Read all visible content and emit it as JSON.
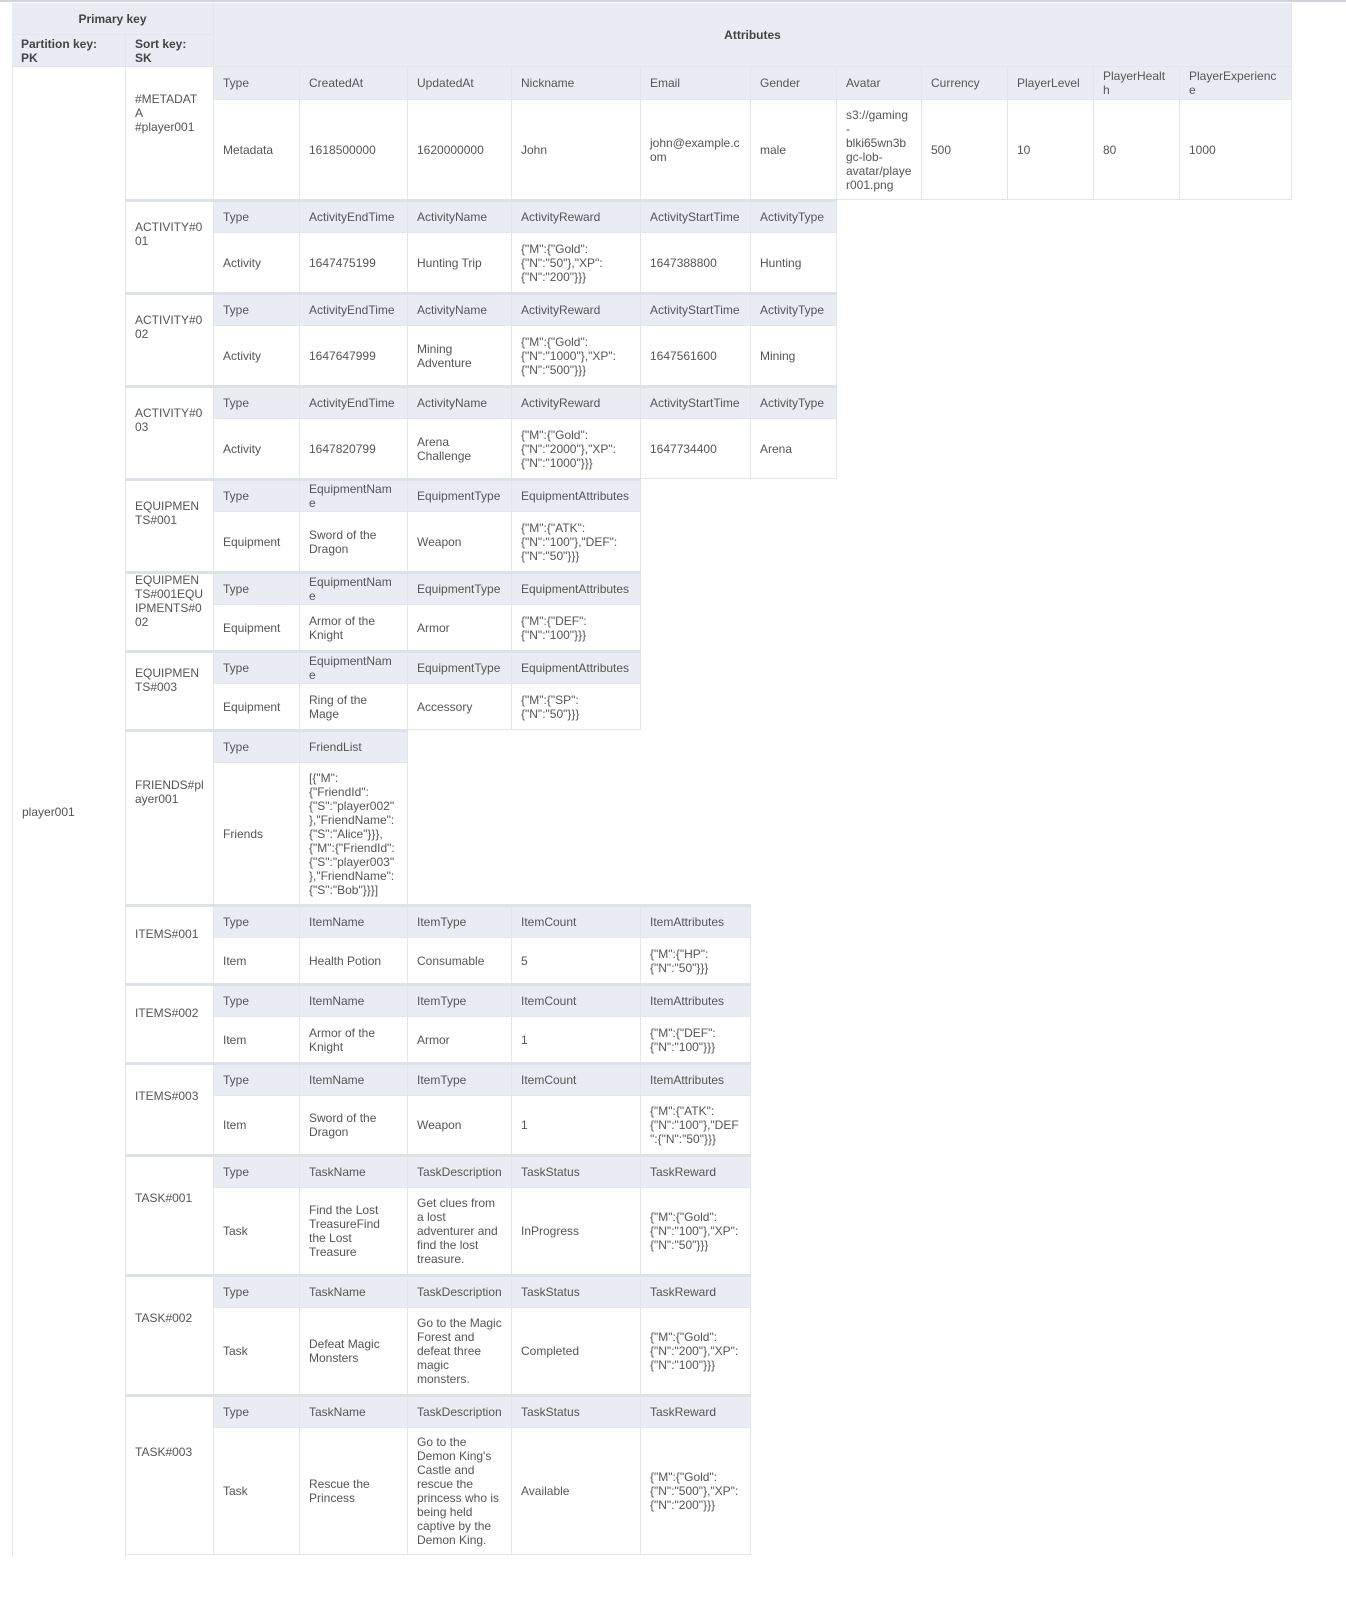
{
  "header": {
    "primary_key": "Primary key",
    "partition_key": "Partition key: PK",
    "sort_key": "Sort key: SK",
    "attributes": "Attributes"
  },
  "partition_value": "player001",
  "items": [
    {
      "sk": "#METADATA #player001",
      "columns": [
        "Type",
        "CreatedAt",
        "UpdatedAt",
        "Nickname",
        "Email",
        "Gender",
        "Avatar",
        "Currency",
        "PlayerLevel",
        "PlayerHealth",
        "PlayerExperience"
      ],
      "values": [
        "Metadata",
        "1618500000",
        "1620000000",
        "John",
        "john@example.com",
        "male",
        "s3://gaming-blki65wn3bgc-lob-avatar/player001.png",
        "500",
        "10",
        "80",
        "1000"
      ]
    },
    {
      "sk": "ACTIVITY#001",
      "columns": [
        "Type",
        "ActivityEndTime",
        "ActivityName",
        "ActivityReward",
        "ActivityStartTime",
        "ActivityType"
      ],
      "values": [
        "Activity",
        "1647475199",
        "Hunting Trip",
        "{\"M\":{\"Gold\":{\"N\":\"50\"},\"XP\":{\"N\":\"200\"}}}",
        "1647388800",
        "Hunting"
      ]
    },
    {
      "sk": "ACTIVITY#002",
      "columns": [
        "Type",
        "ActivityEndTime",
        "ActivityName",
        "ActivityReward",
        "ActivityStartTime",
        "ActivityType"
      ],
      "values": [
        "Activity",
        "1647647999",
        "Mining Adventure",
        "{\"M\":{\"Gold\":{\"N\":\"1000\"},\"XP\":{\"N\":\"500\"}}}",
        "1647561600",
        "Mining"
      ]
    },
    {
      "sk": "ACTIVITY#003",
      "columns": [
        "Type",
        "ActivityEndTime",
        "ActivityName",
        "ActivityReward",
        "ActivityStartTime",
        "ActivityType"
      ],
      "values": [
        "Activity",
        "1647820799",
        "Arena Challenge",
        "{\"M\":{\"Gold\":{\"N\":\"2000\"},\"XP\":{\"N\":\"1000\"}}}",
        "1647734400",
        "Arena"
      ]
    },
    {
      "sk": "EQUIPMENTS#001",
      "columns": [
        "Type",
        "EquipmentName",
        "EquipmentType",
        "EquipmentAttributes"
      ],
      "values": [
        "Equipment",
        "Sword of the Dragon",
        "Weapon",
        "{\"M\":{\"ATK\":{\"N\":\"100\"},\"DEF\":{\"N\":\"50\"}}}"
      ]
    },
    {
      "sk": "EQUIPMENTS#001EQUIPMENTS#002",
      "columns": [
        "Type",
        "EquipmentName",
        "EquipmentType",
        "EquipmentAttributes"
      ],
      "values": [
        "Equipment",
        "Armor of the Knight",
        "Armor",
        "{\"M\":{\"DEF\":{\"N\":\"100\"}}}"
      ]
    },
    {
      "sk": "EQUIPMENTS#003",
      "columns": [
        "Type",
        "EquipmentName",
        "EquipmentType",
        "EquipmentAttributes"
      ],
      "values": [
        "Equipment",
        "Ring of the Mage",
        "Accessory",
        "{\"M\":{\"SP\":{\"N\":\"50\"}}}"
      ]
    },
    {
      "sk": "FRIENDS#player001",
      "columns": [
        "Type",
        "FriendList"
      ],
      "values": [
        "Friends",
        "[{\"M\":{\"FriendId\":{\"S\":\"player002\"},\"FriendName\":{\"S\":\"Alice\"}}},{\"M\":{\"FriendId\":{\"S\":\"player003\"},\"FriendName\":{\"S\":\"Bob\"}}}]"
      ]
    },
    {
      "sk": "ITEMS#001",
      "columns": [
        "Type",
        "ItemName",
        "ItemType",
        "ItemCount",
        "ItemAttributes"
      ],
      "values": [
        "Item",
        "Health Potion",
        "Consumable",
        "5",
        "{\"M\":{\"HP\":{\"N\":\"50\"}}}"
      ]
    },
    {
      "sk": "ITEMS#002",
      "columns": [
        "Type",
        "ItemName",
        "ItemType",
        "ItemCount",
        "ItemAttributes"
      ],
      "values": [
        "Item",
        "Armor of the Knight",
        "Armor",
        "1",
        "{\"M\":{\"DEF\":{\"N\":\"100\"}}}"
      ]
    },
    {
      "sk": "ITEMS#003",
      "columns": [
        "Type",
        "ItemName",
        "ItemType",
        "ItemCount",
        "ItemAttributes"
      ],
      "values": [
        "Item",
        "Sword of the Dragon",
        "Weapon",
        "1",
        "{\"M\":{\"ATK\":{\"N\":\"100\"},\"DEF\":{\"N\":\"50\"}}}"
      ]
    },
    {
      "sk": "TASK#001",
      "columns": [
        "Type",
        "TaskName",
        "TaskDescription",
        "TaskStatus",
        "TaskReward"
      ],
      "values": [
        "Task",
        "Find the Lost TreasureFind the Lost Treasure",
        "Get clues from a lost adventurer and find the lost treasure.",
        "InProgress",
        "{\"M\":{\"Gold\":{\"N\":\"100\"},\"XP\":{\"N\":\"50\"}}}"
      ]
    },
    {
      "sk": "TASK#002",
      "columns": [
        "Type",
        "TaskName",
        "TaskDescription",
        "TaskStatus",
        "TaskReward"
      ],
      "values": [
        "Task",
        "Defeat Magic Monsters",
        "Go to the Magic Forest and defeat three magic monsters.",
        "Completed",
        "{\"M\":{\"Gold\":{\"N\":\"200\"},\"XP\":{\"N\":\"100\"}}}"
      ]
    },
    {
      "sk": "TASK#003",
      "columns": [
        "Type",
        "TaskName",
        "TaskDescription",
        "TaskStatus",
        "TaskReward"
      ],
      "values": [
        "Task",
        "Rescue the Princess",
        "Go to the Demon King's Castle and rescue the princess who is being held captive by the Demon King.",
        "Available",
        "{\"M\":{\"Gold\":{\"N\":\"500\"},\"XP\":{\"N\":\"200\"}}}"
      ]
    }
  ]
}
